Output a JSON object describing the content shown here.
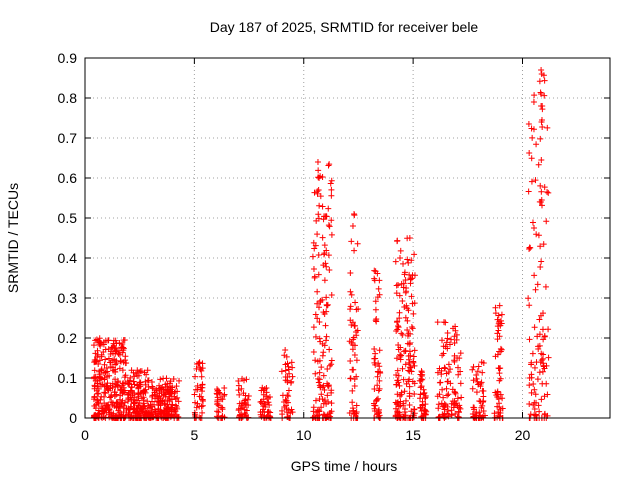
{
  "chart_data": {
    "type": "scatter",
    "title": "Day 187 of 2025, SRMTID for receiver bele",
    "xlabel": "GPS time / hours",
    "ylabel": "SRMTID / TECUs",
    "xlim": [
      0,
      24
    ],
    "ylim": [
      0,
      0.9
    ],
    "xticks": [
      0,
      5,
      10,
      15,
      20
    ],
    "yticks": [
      0,
      0.1,
      0.2,
      0.3,
      0.4,
      0.5,
      0.6,
      0.7,
      0.8,
      0.9
    ],
    "grid": true,
    "marker": "plus",
    "color": "#ff0000",
    "clusters": [
      {
        "x": [
          0.4,
          1.9
        ],
        "max": 0.2,
        "n": 280
      },
      {
        "x": [
          1.9,
          3.0
        ],
        "max": 0.12,
        "n": 150
      },
      {
        "x": [
          3.0,
          4.3
        ],
        "max": 0.1,
        "n": 160
      },
      {
        "x": [
          5.0,
          5.4
        ],
        "max": 0.14,
        "n": 40
      },
      {
        "x": [
          6.0,
          6.4
        ],
        "max": 0.08,
        "n": 30
      },
      {
        "x": [
          7.0,
          7.5
        ],
        "max": 0.1,
        "n": 40
      },
      {
        "x": [
          8.0,
          8.5
        ],
        "max": 0.08,
        "n": 40
      },
      {
        "x": [
          9.0,
          9.5
        ],
        "max": 0.17,
        "n": 40
      },
      {
        "x": [
          10.4,
          11.3
        ],
        "max": 0.64,
        "n": 140
      },
      {
        "x": [
          12.1,
          12.5
        ],
        "max": 0.51,
        "n": 50
      },
      {
        "x": [
          13.2,
          13.5
        ],
        "max": 0.37,
        "n": 50
      },
      {
        "x": [
          14.2,
          15.1
        ],
        "max": 0.45,
        "n": 150
      },
      {
        "x": [
          15.3,
          15.6
        ],
        "max": 0.12,
        "n": 40
      },
      {
        "x": [
          16.1,
          17.2
        ],
        "max": 0.24,
        "n": 100
      },
      {
        "x": [
          17.7,
          18.3
        ],
        "max": 0.14,
        "n": 50
      },
      {
        "x": [
          18.7,
          19.1
        ],
        "max": 0.29,
        "n": 50
      },
      {
        "x": [
          20.2,
          21.2
        ],
        "max": 0.87,
        "n": 110
      }
    ],
    "outliers": [
      {
        "x": 20.85,
        "y": 0.87
      },
      {
        "x": 20.88,
        "y": 0.86
      },
      {
        "x": 20.85,
        "y": 0.78
      },
      {
        "x": 20.9,
        "y": 0.78
      },
      {
        "x": 20.87,
        "y": 0.74
      },
      {
        "x": 20.89,
        "y": 0.745
      },
      {
        "x": 20.86,
        "y": 0.645
      },
      {
        "x": 20.84,
        "y": 0.54
      },
      {
        "x": 20.88,
        "y": 0.545
      },
      {
        "x": 10.65,
        "y": 0.64
      },
      {
        "x": 10.7,
        "y": 0.6
      },
      {
        "x": 10.68,
        "y": 0.57
      },
      {
        "x": 12.3,
        "y": 0.51
      },
      {
        "x": 12.25,
        "y": 0.48
      },
      {
        "x": 14.85,
        "y": 0.45
      },
      {
        "x": 14.4,
        "y": 0.4
      }
    ]
  }
}
